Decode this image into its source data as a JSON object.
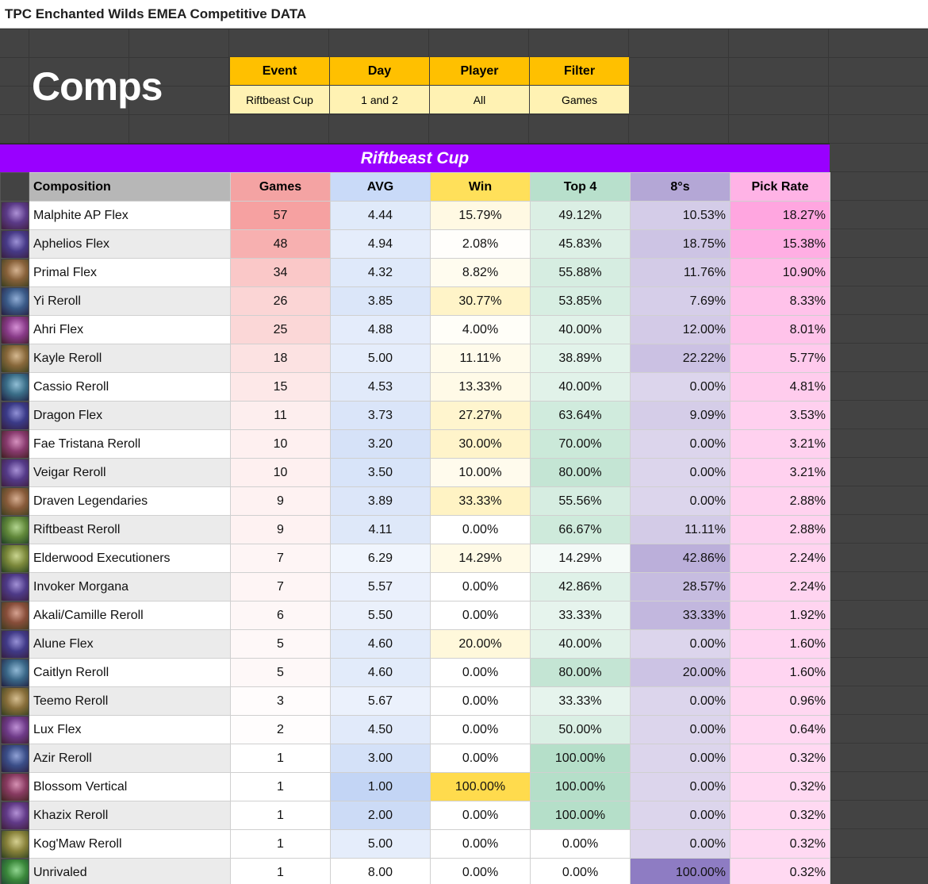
{
  "page_title": "TPC Enchanted Wilds EMEA Competitive DATA",
  "heading": "Comps",
  "filters": {
    "headers": [
      "Event",
      "Day",
      "Player",
      "Filter"
    ],
    "values": [
      "Riftbeast Cup",
      "1 and 2",
      "All",
      "Games"
    ]
  },
  "event_banner": "Riftbeast Cup",
  "table": {
    "columns": [
      "Composition",
      "Games",
      "AVG",
      "Win",
      "Top 4",
      "8°s",
      "Pick Rate"
    ],
    "rows": [
      {
        "name": "Malphite AP Flex",
        "games": "57",
        "avg": "4.44",
        "win": "15.79%",
        "top4": "49.12%",
        "eights": "10.53%",
        "pick": "18.27%"
      },
      {
        "name": "Aphelios Flex",
        "games": "48",
        "avg": "4.94",
        "win": "2.08%",
        "top4": "45.83%",
        "eights": "18.75%",
        "pick": "15.38%"
      },
      {
        "name": "Primal Flex",
        "games": "34",
        "avg": "4.32",
        "win": "8.82%",
        "top4": "55.88%",
        "eights": "11.76%",
        "pick": "10.90%"
      },
      {
        "name": "Yi Reroll",
        "games": "26",
        "avg": "3.85",
        "win": "30.77%",
        "top4": "53.85%",
        "eights": "7.69%",
        "pick": "8.33%"
      },
      {
        "name": "Ahri Flex",
        "games": "25",
        "avg": "4.88",
        "win": "4.00%",
        "top4": "40.00%",
        "eights": "12.00%",
        "pick": "8.01%"
      },
      {
        "name": "Kayle Reroll",
        "games": "18",
        "avg": "5.00",
        "win": "11.11%",
        "top4": "38.89%",
        "eights": "22.22%",
        "pick": "5.77%"
      },
      {
        "name": "Cassio Reroll",
        "games": "15",
        "avg": "4.53",
        "win": "13.33%",
        "top4": "40.00%",
        "eights": "0.00%",
        "pick": "4.81%"
      },
      {
        "name": "Dragon Flex",
        "games": "11",
        "avg": "3.73",
        "win": "27.27%",
        "top4": "63.64%",
        "eights": "9.09%",
        "pick": "3.53%"
      },
      {
        "name": "Fae Tristana Reroll",
        "games": "10",
        "avg": "3.20",
        "win": "30.00%",
        "top4": "70.00%",
        "eights": "0.00%",
        "pick": "3.21%"
      },
      {
        "name": "Veigar Reroll",
        "games": "10",
        "avg": "3.50",
        "win": "10.00%",
        "top4": "80.00%",
        "eights": "0.00%",
        "pick": "3.21%"
      },
      {
        "name": "Draven Legendaries",
        "games": "9",
        "avg": "3.89",
        "win": "33.33%",
        "top4": "55.56%",
        "eights": "0.00%",
        "pick": "2.88%"
      },
      {
        "name": "Riftbeast Reroll",
        "games": "9",
        "avg": "4.11",
        "win": "0.00%",
        "top4": "66.67%",
        "eights": "11.11%",
        "pick": "2.88%"
      },
      {
        "name": "Elderwood Executioners",
        "games": "7",
        "avg": "6.29",
        "win": "14.29%",
        "top4": "14.29%",
        "eights": "42.86%",
        "pick": "2.24%"
      },
      {
        "name": "Invoker Morgana",
        "games": "7",
        "avg": "5.57",
        "win": "0.00%",
        "top4": "42.86%",
        "eights": "28.57%",
        "pick": "2.24%"
      },
      {
        "name": "Akali/Camille Reroll",
        "games": "6",
        "avg": "5.50",
        "win": "0.00%",
        "top4": "33.33%",
        "eights": "33.33%",
        "pick": "1.92%"
      },
      {
        "name": "Alune Flex",
        "games": "5",
        "avg": "4.60",
        "win": "20.00%",
        "top4": "40.00%",
        "eights": "0.00%",
        "pick": "1.60%"
      },
      {
        "name": "Caitlyn Reroll",
        "games": "5",
        "avg": "4.60",
        "win": "0.00%",
        "top4": "80.00%",
        "eights": "20.00%",
        "pick": "1.60%"
      },
      {
        "name": "Teemo Reroll",
        "games": "3",
        "avg": "5.67",
        "win": "0.00%",
        "top4": "33.33%",
        "eights": "0.00%",
        "pick": "0.96%"
      },
      {
        "name": "Lux Flex",
        "games": "2",
        "avg": "4.50",
        "win": "0.00%",
        "top4": "50.00%",
        "eights": "0.00%",
        "pick": "0.64%"
      },
      {
        "name": "Azir Reroll",
        "games": "1",
        "avg": "3.00",
        "win": "0.00%",
        "top4": "100.00%",
        "eights": "0.00%",
        "pick": "0.32%"
      },
      {
        "name": "Blossom Vertical",
        "games": "1",
        "avg": "1.00",
        "win": "100.00%",
        "top4": "100.00%",
        "eights": "0.00%",
        "pick": "0.32%"
      },
      {
        "name": "Khazix Reroll",
        "games": "1",
        "avg": "2.00",
        "win": "0.00%",
        "top4": "100.00%",
        "eights": "0.00%",
        "pick": "0.32%"
      },
      {
        "name": "Kog'Maw Reroll",
        "games": "1",
        "avg": "5.00",
        "win": "0.00%",
        "top4": "0.00%",
        "eights": "0.00%",
        "pick": "0.32%"
      },
      {
        "name": "Unrivaled",
        "games": "1",
        "avg": "8.00",
        "win": "0.00%",
        "top4": "0.00%",
        "eights": "100.00%",
        "pick": "0.32%"
      }
    ]
  },
  "colors": {
    "filter_header": "#ffc000",
    "filter_value": "#fff2b3",
    "banner": "#9900ff",
    "games_header": "#f4a3a3",
    "avg_header": "#c9daf8",
    "win_header": "#ffe05a",
    "top4_header": "#b8e0cc",
    "eights_header": "#b4a7d6",
    "pick_header": "#ffb3e6"
  },
  "icons": [
    "champion-portrait-icon"
  ]
}
